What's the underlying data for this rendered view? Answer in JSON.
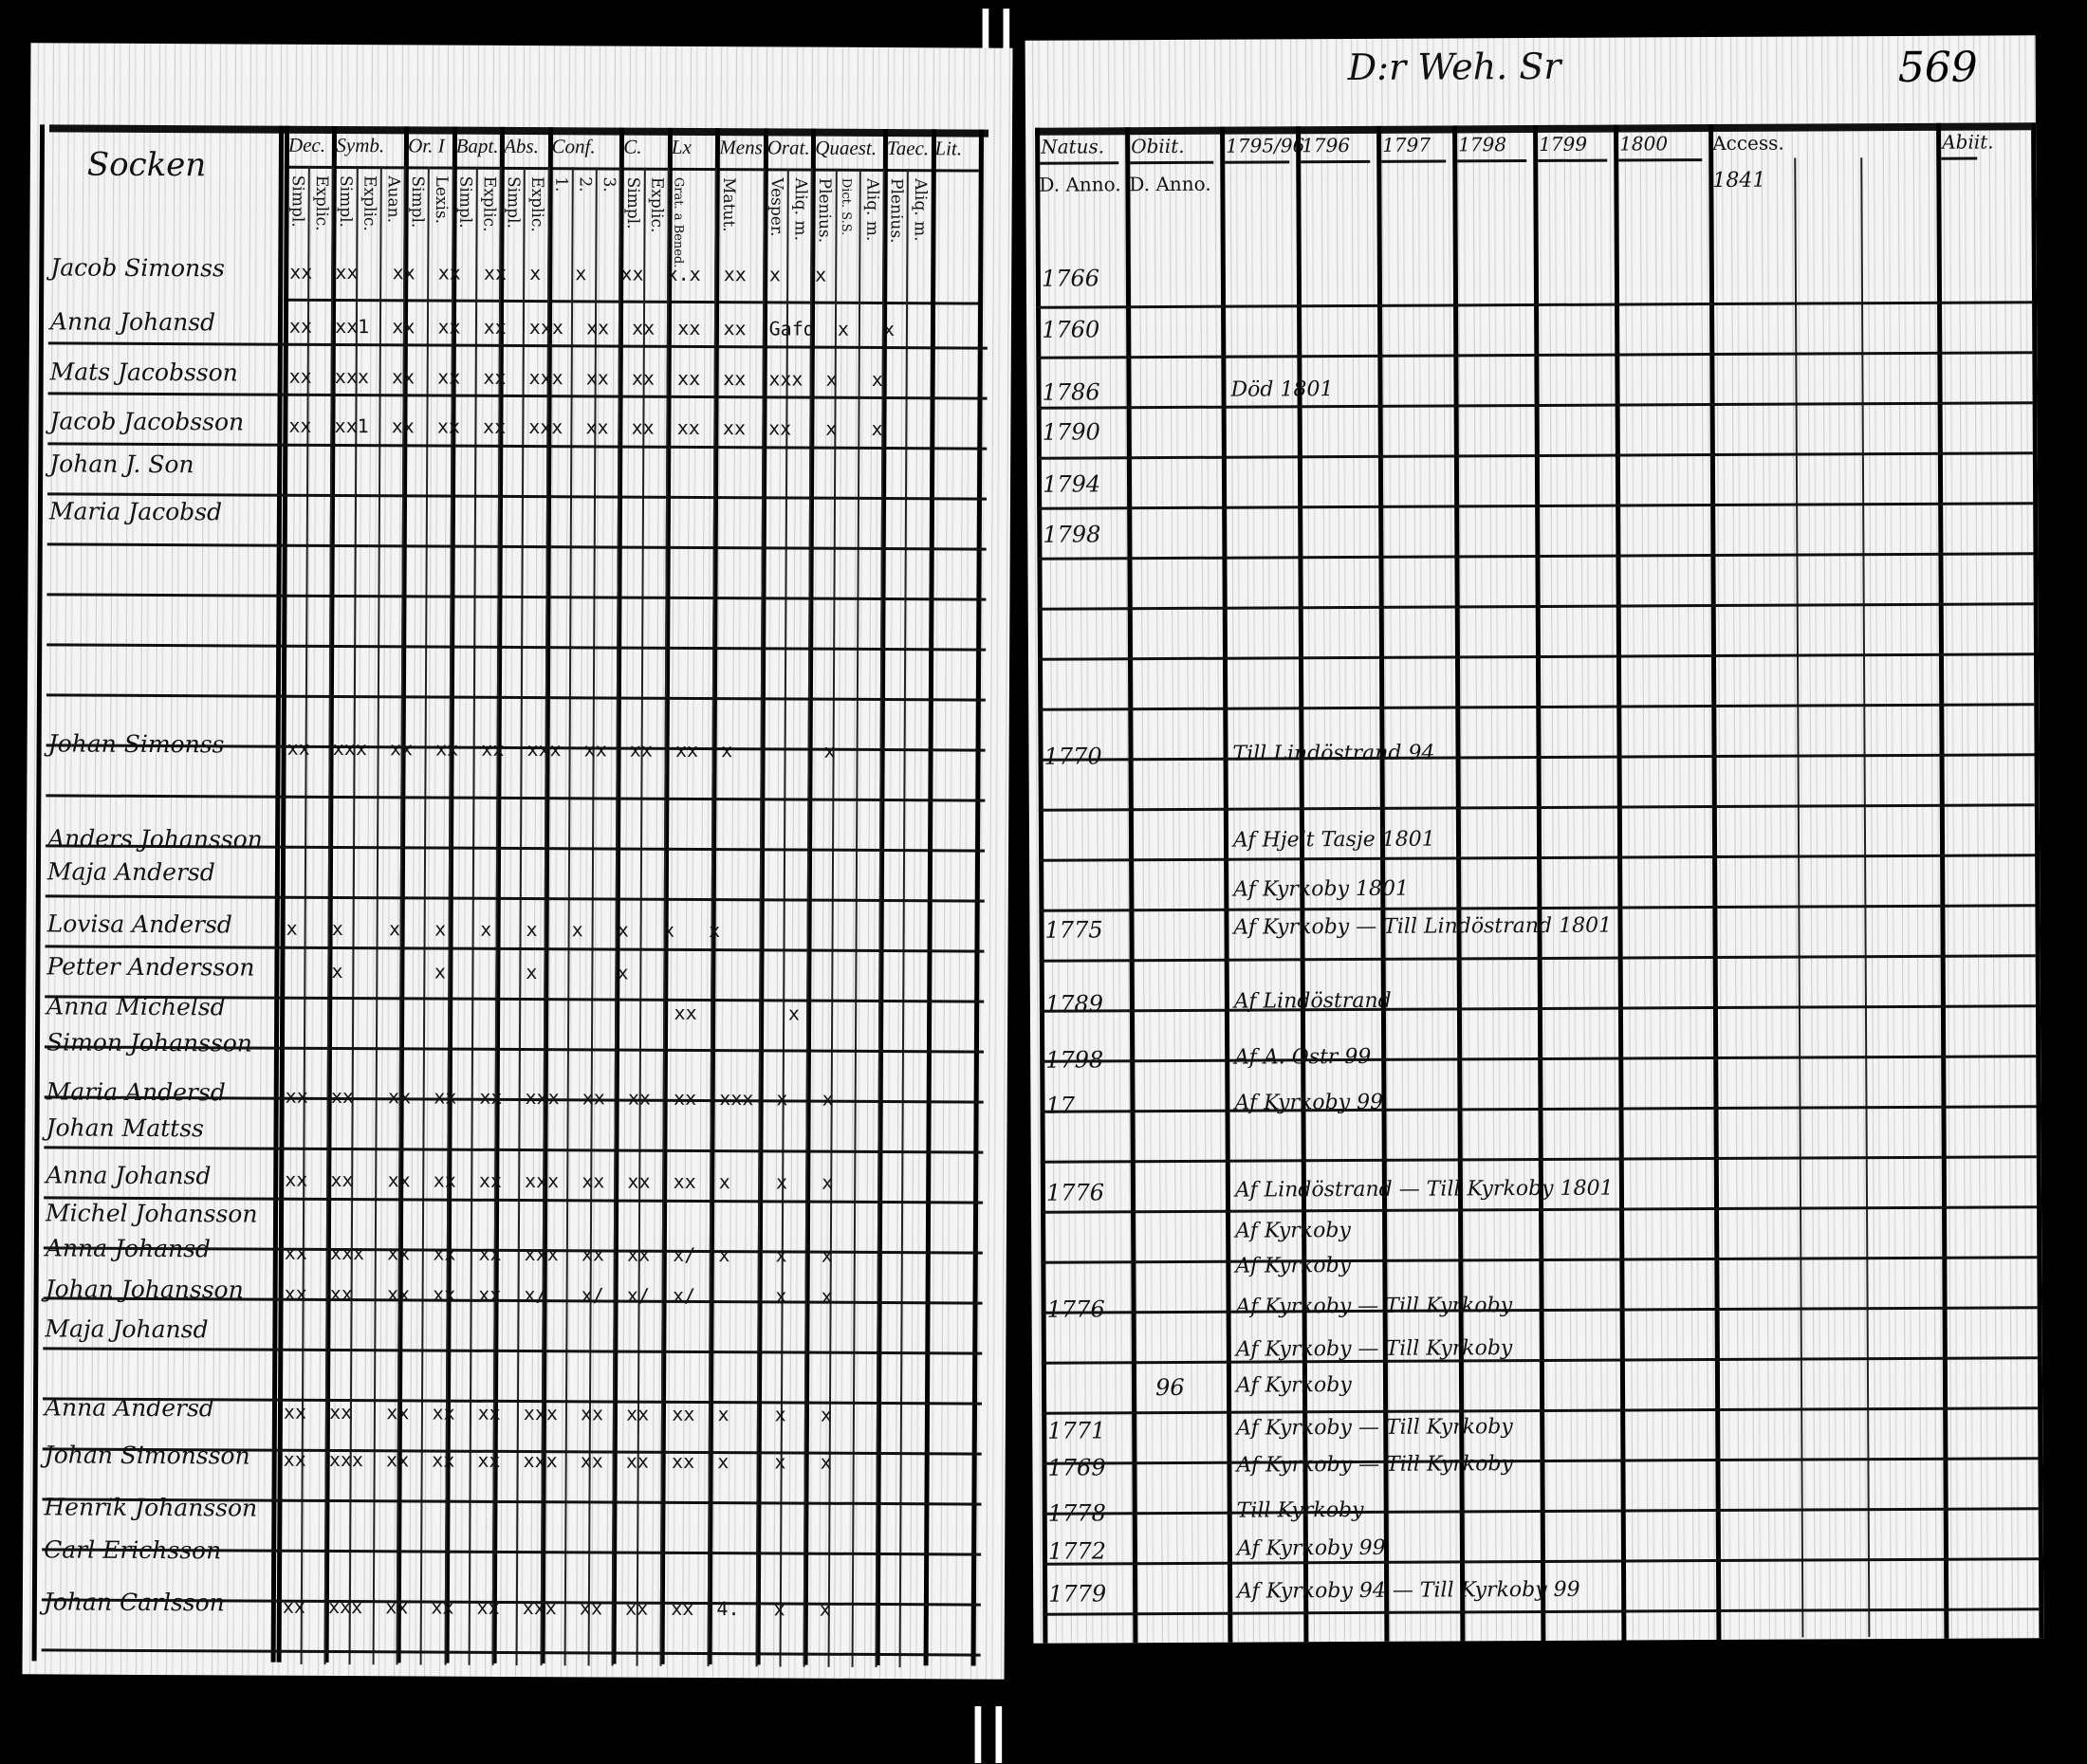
{
  "gutter_marks": [
    "||",
    "||"
  ],
  "left_page": {
    "title": "Socken",
    "groups": [
      "Dec.",
      "Symb.",
      "Or. I",
      "Bapt.",
      "Abs.",
      "Conf.",
      "C.",
      "Lx",
      "Mens.",
      "Orat.",
      "Quaest.",
      "Taec.",
      "Lit."
    ],
    "subcolumns": [
      "Simpl.",
      "Explic.",
      "Simpl.",
      "Explic.",
      "Auan.",
      "Simpl.",
      "Lexis.",
      "Simpl.",
      "Explic.",
      "Simpl.",
      "Explic.",
      "1.",
      "2.",
      "3.",
      "Simpl.",
      "Explic.",
      "Grat. a Bened.",
      "Matut.",
      "Vesper.",
      "Aliq. m.",
      "Plenius.",
      "Dict. S.S.",
      "Aliq. m.",
      "Plenius.",
      "Aliq. m."
    ],
    "rows": [
      {
        "name": "Jacob Simonss",
        "marks": "xx  xx   xx  xx  xx  x   x   xx  x.x  xx  x   x"
      },
      {
        "name": "Anna Johansd",
        "marks": "xx  xx1  xx  xx  xx  xxx  xx  xx  xx  xx  Gafd  x   x"
      },
      {
        "name": "Mats Jacobsson",
        "marks": "xx  xxx  xx  xx  xx  xxx  xx  xx  xx  xx  xxx  x   x"
      },
      {
        "name": "Jacob Jacobsson",
        "marks": "xx  xx1  xx  xx  xx  xxx  xx  xx  xx  xx  xx   x   x"
      },
      {
        "name": "Johan J. Son",
        "marks": ""
      },
      {
        "name": "Maria Jacobsd",
        "marks": ""
      },
      {
        "name": "Johan Simonss",
        "marks": "xx  xxx  xx  xx  xx  xxx  xx  xx  xx  x        x"
      },
      {
        "name": "Anders Johansson",
        "marks": ""
      },
      {
        "name": "Maja Andersd",
        "marks": ""
      },
      {
        "name": "Lovisa Andersd",
        "marks": "x   x    x   x   x   x   x   x   x   x"
      },
      {
        "name": "Petter Andersson",
        "marks": "    x        x       x       x"
      },
      {
        "name": "Anna Michelsd",
        "marks": "                                  xx        x"
      },
      {
        "name": "Simon Johansson",
        "marks": ""
      },
      {
        "name": "Maria Andersd",
        "marks": "xx  xx   xx  xx  xx  xxx  xx  xx  xx  xxx  x   x"
      },
      {
        "name": "Johan Mattss",
        "marks": ""
      },
      {
        "name": "Anna Johansd",
        "marks": "xx  xx   xx  xx  xx  xxx  xx  xx  xx  x    x   x"
      },
      {
        "name": "Michel Johansson",
        "marks": ""
      },
      {
        "name": "Anna Johansd",
        "marks": "xx  xxx  xx  xx  xx  xxx  xx  xx  x/  x    x   x"
      },
      {
        "name": "Johan Johansson",
        "marks": "xx  xx   xx  xx  xx  x/   x/  x/  x/       x   x"
      },
      {
        "name": "Maja Johansd",
        "marks": ""
      },
      {
        "name": "Anna Andersd",
        "marks": "xx  xx   xx  xx  xx  xxx  xx  xx  xx  x    x   x"
      },
      {
        "name": "Johan Simonsson",
        "marks": "xx  xxx  xx  xx  xx  xxx  xx  xx  xx  x    x   x"
      },
      {
        "name": "Henrik Johansson",
        "marks": ""
      },
      {
        "name": "Carl Erichsson",
        "marks": ""
      },
      {
        "name": "Johan Carlsson",
        "marks": "xx  xxx  xx  xx  xx  xxx  xx  xx  xx  4.   x   x"
      }
    ]
  },
  "right_page": {
    "page_number": "569",
    "heading": "D:r Weh. Sr",
    "columns": [
      {
        "top": "Natus.",
        "bottom": "D. Anno."
      },
      {
        "top": "Obiit.",
        "bottom": "D. Anno."
      },
      {
        "top": "1795/96",
        "bottom": ""
      },
      {
        "top": "1796",
        "bottom": ""
      },
      {
        "top": "1797",
        "bottom": ""
      },
      {
        "top": "1798",
        "bottom": ""
      },
      {
        "top": "1799",
        "bottom": ""
      },
      {
        "top": "1800",
        "bottom": ""
      },
      {
        "top": "Access.",
        "bottom": "1841"
      },
      {
        "top": "Abiit.",
        "bottom": ""
      }
    ],
    "rows": [
      {
        "born": "1766",
        "died": "",
        "note": ""
      },
      {
        "born": "1760",
        "died": "",
        "note": ""
      },
      {
        "born": "1786",
        "died": "",
        "note": "Död 1801"
      },
      {
        "born": "1790",
        "died": "",
        "note": ""
      },
      {
        "born": "1794",
        "died": "",
        "note": ""
      },
      {
        "born": "1798",
        "died": "",
        "note": ""
      },
      {
        "born": "1770",
        "died": "",
        "note": "Till Lindöstrand 94"
      },
      {
        "born": "",
        "died": "",
        "note": "Af Hjelt Tasje 1801"
      },
      {
        "born": "",
        "died": "",
        "note": "Af Kyrkoby 1801"
      },
      {
        "born": "1775",
        "died": "",
        "note": "Af Kyrkoby — Till Lindöstrand 1801"
      },
      {
        "born": "1789",
        "died": "",
        "note": "Af Lindöstrand"
      },
      {
        "born": "1798",
        "died": "",
        "note": "Af A. Ostr 99"
      },
      {
        "born": "17",
        "died": "",
        "note": "Af Kyrkoby 99"
      },
      {
        "born": "1776",
        "died": "",
        "note": "Af Lindöstrand — Till Kyrkoby 1801"
      },
      {
        "born": "",
        "died": "",
        "note": "Af Kyrkoby"
      },
      {
        "born": "",
        "died": "",
        "note": "Af Kyrkoby"
      },
      {
        "born": "1776",
        "died": "",
        "note": "Af Kyrkoby — Till Kyrkoby"
      },
      {
        "born": "",
        "died": "",
        "note": "Af Kyrkoby — Till Kyrkoby"
      },
      {
        "born": "",
        "died": "96",
        "note": "Af Kyrkoby"
      },
      {
        "born": "1771",
        "died": "",
        "note": "Af Kyrkoby — Till Kyrkoby"
      },
      {
        "born": "1769",
        "died": "",
        "note": "Af Kyrkoby — Till Kyrkoby"
      },
      {
        "born": "1778",
        "died": "",
        "note": "Till Kyrkoby"
      },
      {
        "born": "1772",
        "died": "",
        "note": "Af Kyrkoby 99"
      },
      {
        "born": "1779",
        "died": "",
        "note": "Af Kyrkoby 94 — Till Kyrkoby 99"
      }
    ]
  }
}
